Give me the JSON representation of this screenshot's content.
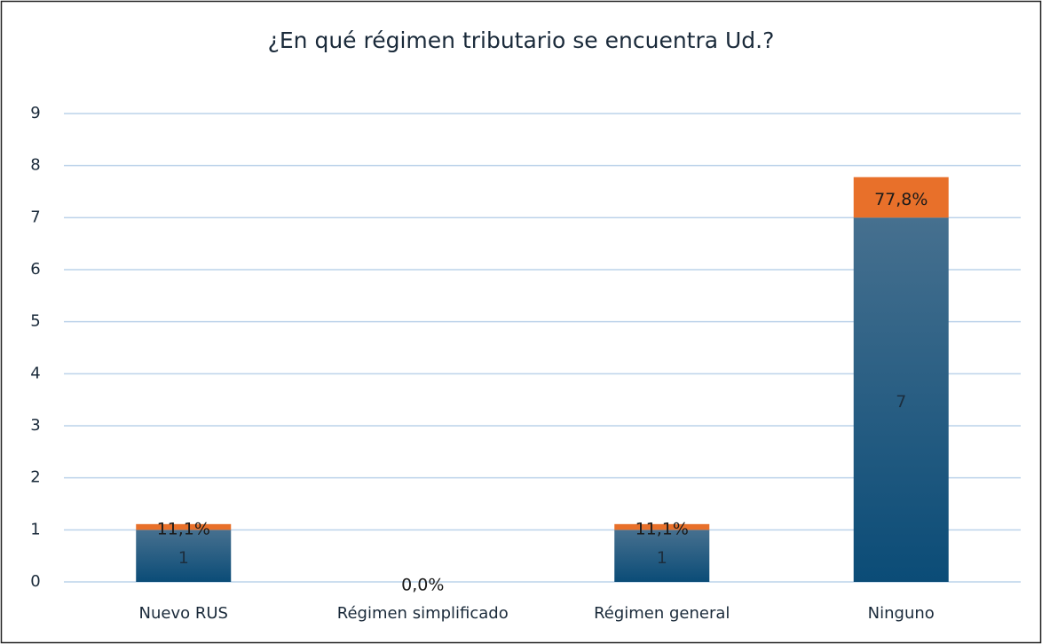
{
  "chart_data": {
    "type": "stacked_bar",
    "title": "¿En qué régimen tributario se encuentra Ud.?",
    "categories": [
      "Nuevo RUS",
      "Régimen simplificado",
      "Régimen general",
      "Ninguno"
    ],
    "series": [
      {
        "color": "#0e5078",
        "values": [
          1,
          0,
          1,
          7
        ],
        "value_labels": [
          "1",
          null,
          "1",
          "7"
        ]
      },
      {
        "color": "#e8702a",
        "values": [
          0.111,
          0,
          0.111,
          0.778
        ],
        "value_labels": [
          "11,1%",
          "0,0%",
          "11,1%",
          "77,8%"
        ]
      }
    ],
    "ylim": [
      0,
      9
    ],
    "yticks": [
      0,
      1,
      2,
      3,
      4,
      5,
      6,
      7,
      8,
      9
    ],
    "grid": true
  }
}
